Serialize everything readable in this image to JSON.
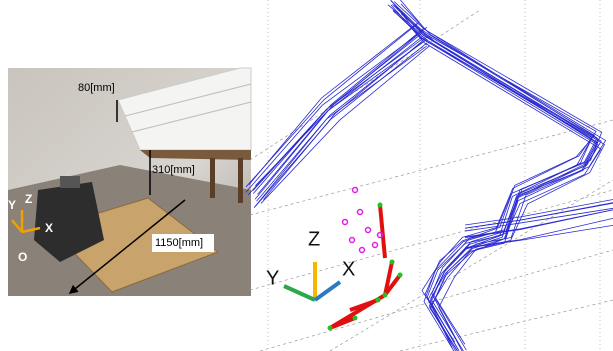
{
  "photo": {
    "labels": {
      "shelf_height": "80[mm]",
      "shelf_distance": "310[mm]",
      "track_length": "1150[mm]"
    },
    "axes": {
      "y": "Y",
      "z": "Z",
      "x": "X",
      "origin": "O"
    }
  },
  "plot": {
    "axes": {
      "z": "Z",
      "y": "Y",
      "x": "X"
    }
  }
}
